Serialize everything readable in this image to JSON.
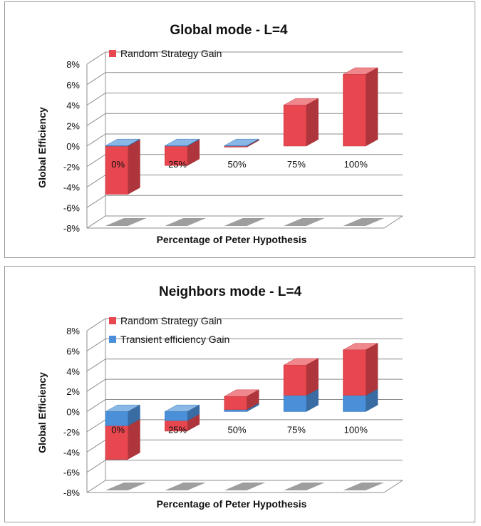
{
  "chart_data": [
    {
      "type": "bar",
      "title": "Global mode - L=4",
      "xlabel": "Percentage of Peter Hypothesis",
      "ylabel": "Global Efficiency",
      "ylim": [
        -8,
        8
      ],
      "yticks": [
        "8%",
        "6%",
        "4%",
        "2%",
        "0%",
        "-2%",
        "-4%",
        "-6%",
        "-8%"
      ],
      "categories": [
        "0%",
        "25%",
        "50%",
        "75%",
        "100%"
      ],
      "series": [
        {
          "name": "Random Strategy Gain",
          "values": [
            -4.7,
            -1.9,
            -0.1,
            4.0,
            7.0
          ],
          "color": "#e8474f"
        },
        {
          "values": [
            0,
            0,
            0,
            0,
            0
          ],
          "color": "#4a90d9"
        }
      ],
      "legend_position": "top-left",
      "grid": true
    },
    {
      "type": "bar",
      "title": "Neighbors mode - L=4",
      "xlabel": "Percentage of Peter Hypothesis",
      "ylabel": "Global Efficiency",
      "ylim": [
        -8,
        8
      ],
      "yticks": [
        "8%",
        "6%",
        "4%",
        "2%",
        "0%",
        "-2%",
        "-4%",
        "-6%",
        "-8%"
      ],
      "categories": [
        "0%",
        "25%",
        "50%",
        "75%",
        "100%"
      ],
      "series": [
        {
          "name": "Random Strategy Gain",
          "values": [
            -3.3,
            -1.0,
            1.3,
            3.0,
            4.5
          ],
          "color": "#e8474f"
        },
        {
          "name": "Transient efficiency Gain",
          "values": [
            -1.4,
            -0.9,
            0.2,
            1.6,
            1.6
          ],
          "color": "#4a90d9"
        }
      ],
      "legend_position": "top-left",
      "grid": true
    }
  ]
}
